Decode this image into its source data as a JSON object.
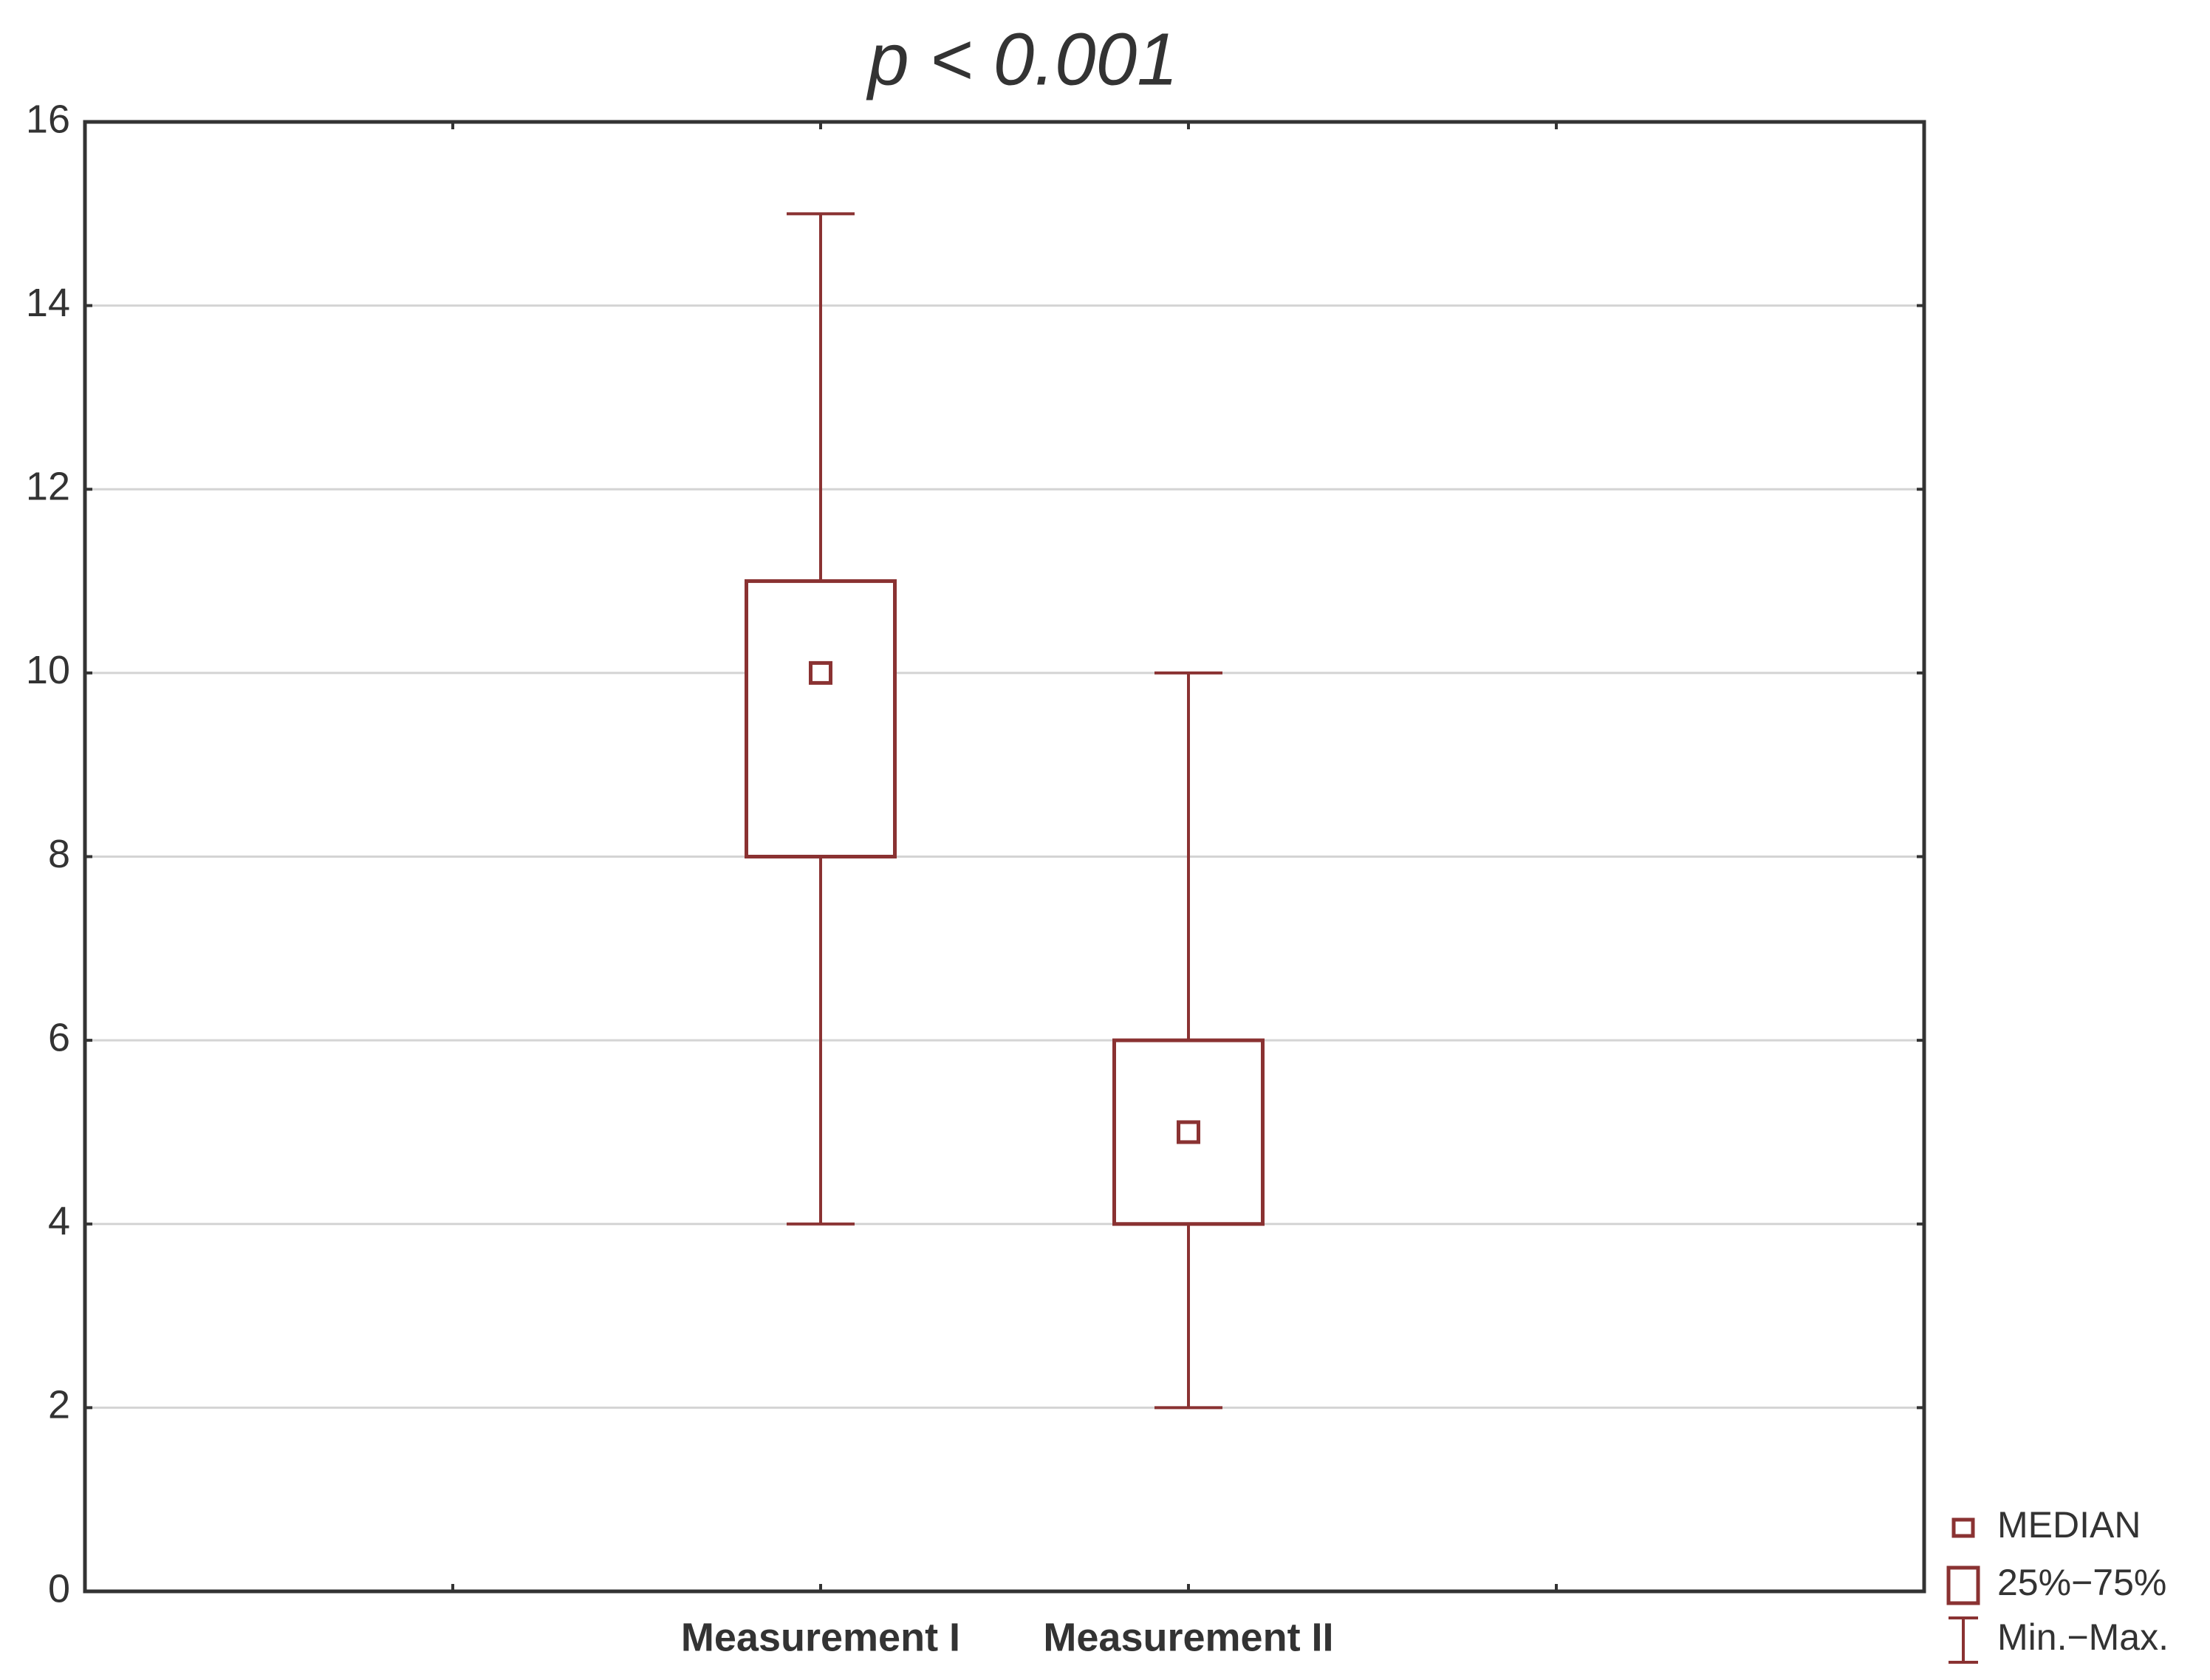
{
  "chart_data": {
    "type": "box",
    "title": "p < 0.001",
    "categories": [
      null,
      "Measurement I",
      "Measurement II",
      null
    ],
    "boxes": [
      null,
      {
        "min": 4,
        "q1": 8,
        "median": 10,
        "q3": 11,
        "max": 15
      },
      {
        "min": 2,
        "q1": 4,
        "median": 5,
        "q3": 6,
        "max": 10
      },
      null
    ],
    "color": "#8a3232",
    "ylim": [
      0,
      16
    ],
    "yticks": [
      0,
      2,
      4,
      6,
      8,
      10,
      12,
      14,
      16
    ],
    "grid": true,
    "legend": [
      "MEDIAN",
      "25%−75%",
      "Min.−Max."
    ],
    "legend_position": "lower right"
  }
}
